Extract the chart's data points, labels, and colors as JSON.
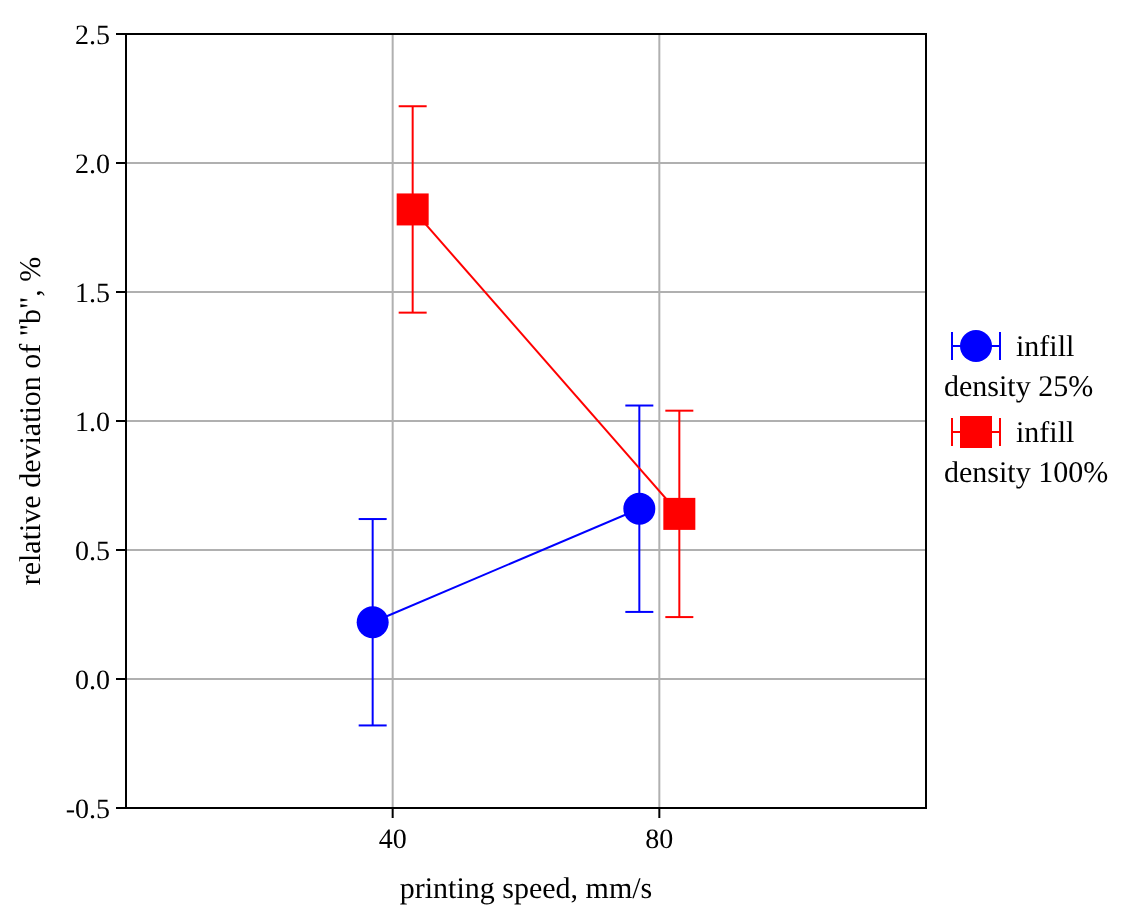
{
  "chart_data": {
    "type": "line",
    "xlabel": "printing speed, mm/s",
    "ylabel": "relative deviation of \"b\", %",
    "categories": [
      "40",
      "80"
    ],
    "series": [
      {
        "name": "infill density 25%",
        "color": "#0000ff",
        "marker": "circle",
        "values": [
          0.22,
          0.66
        ],
        "errors": [
          0.4,
          0.4
        ]
      },
      {
        "name": "infill density 100%",
        "color": "#ff0000",
        "marker": "square",
        "values": [
          1.82,
          0.64
        ],
        "errors": [
          0.4,
          0.4
        ]
      }
    ],
    "ylim": [
      -0.5,
      2.5
    ],
    "yticks": [
      {
        "value": 2.5,
        "label": "2.5"
      },
      {
        "value": 2,
        "label": "2.0"
      },
      {
        "value": 1.5,
        "label": "1.5"
      },
      {
        "value": 1,
        "label": "1.0"
      },
      {
        "value": 0.5,
        "label": "0.5"
      },
      {
        "value": 0,
        "label": "0.0"
      },
      {
        "value": -0.5,
        "label": "-0.5"
      }
    ],
    "grid": true,
    "legend": "right"
  }
}
